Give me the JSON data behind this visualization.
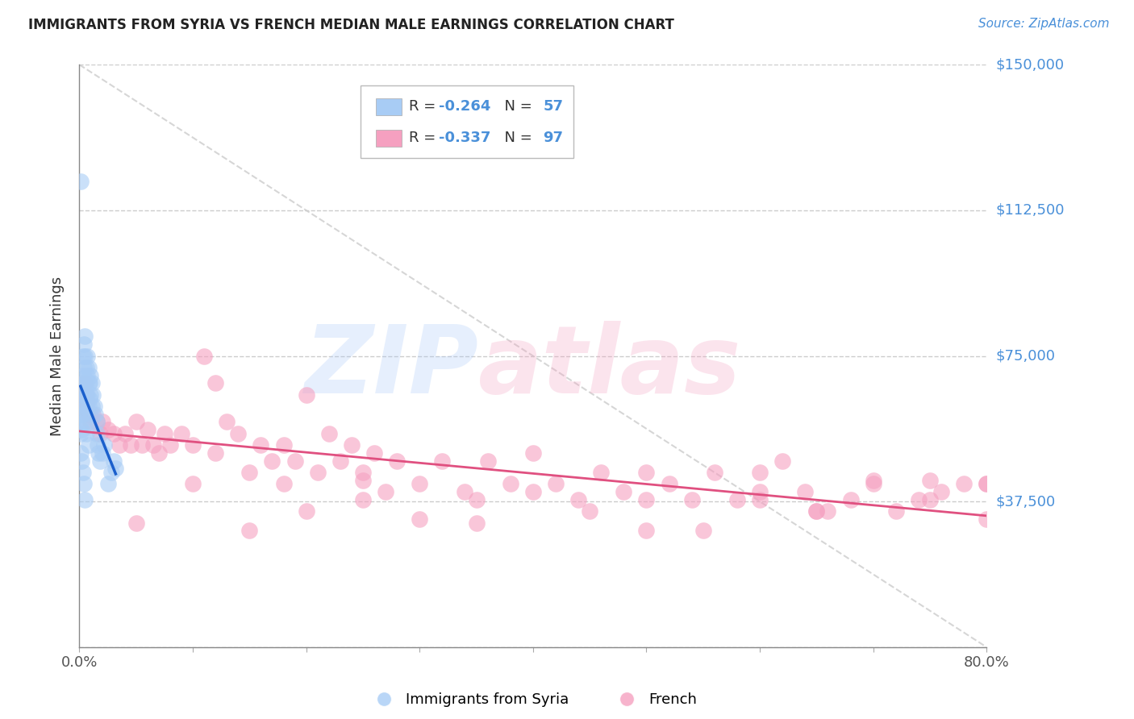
{
  "title": "IMMIGRANTS FROM SYRIA VS FRENCH MEDIAN MALE EARNINGS CORRELATION CHART",
  "source": "Source: ZipAtlas.com",
  "ylabel": "Median Male Earnings",
  "yticks": [
    0,
    37500,
    75000,
    112500,
    150000
  ],
  "ytick_labels": [
    "",
    "$37,500",
    "$75,000",
    "$112,500",
    "$150,000"
  ],
  "xlim": [
    0.0,
    0.8
  ],
  "ylim": [
    0,
    150000
  ],
  "legend_r1": "-0.264",
  "legend_n1": "57",
  "legend_r2": "-0.337",
  "legend_n2": "97",
  "color_syria": "#a8ccf5",
  "color_french": "#f5a0c0",
  "color_trendline_syria": "#1a5fcc",
  "color_trendline_french": "#e05080",
  "color_diagonal": "#cccccc",
  "syria_x": [
    0.001,
    0.001,
    0.002,
    0.002,
    0.003,
    0.003,
    0.003,
    0.004,
    0.004,
    0.004,
    0.005,
    0.005,
    0.005,
    0.005,
    0.006,
    0.006,
    0.006,
    0.006,
    0.007,
    0.007,
    0.007,
    0.008,
    0.008,
    0.008,
    0.009,
    0.009,
    0.01,
    0.01,
    0.011,
    0.011,
    0.012,
    0.013,
    0.014,
    0.015,
    0.015,
    0.016,
    0.017,
    0.018,
    0.02,
    0.022,
    0.025,
    0.028,
    0.03,
    0.032,
    0.001,
    0.002,
    0.003,
    0.004,
    0.005,
    0.006,
    0.007,
    0.008,
    0.001,
    0.002,
    0.003,
    0.004,
    0.005
  ],
  "syria_y": [
    120000,
    55000,
    68000,
    60000,
    70000,
    75000,
    65000,
    78000,
    72000,
    65000,
    80000,
    75000,
    68000,
    62000,
    72000,
    68000,
    65000,
    62000,
    75000,
    70000,
    65000,
    72000,
    68000,
    62000,
    68000,
    64000,
    70000,
    65000,
    68000,
    62000,
    65000,
    62000,
    60000,
    58000,
    55000,
    52000,
    50000,
    48000,
    50000,
    52000,
    42000,
    45000,
    48000,
    46000,
    58000,
    56000,
    62000,
    60000,
    58000,
    55000,
    58000,
    52000,
    50000,
    48000,
    45000,
    42000,
    38000
  ],
  "french_x": [
    0.001,
    0.002,
    0.003,
    0.004,
    0.005,
    0.006,
    0.007,
    0.008,
    0.009,
    0.01,
    0.012,
    0.015,
    0.018,
    0.02,
    0.025,
    0.03,
    0.035,
    0.04,
    0.045,
    0.05,
    0.055,
    0.06,
    0.065,
    0.07,
    0.075,
    0.08,
    0.09,
    0.1,
    0.11,
    0.12,
    0.13,
    0.14,
    0.15,
    0.16,
    0.17,
    0.18,
    0.19,
    0.2,
    0.21,
    0.22,
    0.23,
    0.24,
    0.25,
    0.26,
    0.27,
    0.28,
    0.3,
    0.32,
    0.34,
    0.36,
    0.38,
    0.4,
    0.42,
    0.44,
    0.46,
    0.48,
    0.5,
    0.52,
    0.54,
    0.56,
    0.58,
    0.6,
    0.62,
    0.64,
    0.66,
    0.68,
    0.7,
    0.72,
    0.74,
    0.76,
    0.78,
    0.8,
    0.05,
    0.1,
    0.15,
    0.2,
    0.25,
    0.3,
    0.35,
    0.4,
    0.45,
    0.5,
    0.55,
    0.6,
    0.65,
    0.7,
    0.75,
    0.8,
    0.12,
    0.18,
    0.25,
    0.35,
    0.5,
    0.65,
    0.75,
    0.8,
    0.6
  ],
  "french_y": [
    62000,
    65000,
    63000,
    65000,
    68000,
    65000,
    63000,
    60000,
    60000,
    58000,
    60000,
    58000,
    55000,
    58000,
    56000,
    55000,
    52000,
    55000,
    52000,
    58000,
    52000,
    56000,
    52000,
    50000,
    55000,
    52000,
    55000,
    52000,
    75000,
    68000,
    58000,
    55000,
    45000,
    52000,
    48000,
    52000,
    48000,
    65000,
    45000,
    55000,
    48000,
    52000,
    45000,
    50000,
    40000,
    48000,
    42000,
    48000,
    40000,
    48000,
    42000,
    50000,
    42000,
    38000,
    45000,
    40000,
    45000,
    42000,
    38000,
    45000,
    38000,
    45000,
    48000,
    40000,
    35000,
    38000,
    42000,
    35000,
    38000,
    40000,
    42000,
    42000,
    32000,
    42000,
    30000,
    35000,
    43000,
    33000,
    38000,
    40000,
    35000,
    38000,
    30000,
    40000,
    35000,
    43000,
    38000,
    42000,
    50000,
    42000,
    38000,
    32000,
    30000,
    35000,
    43000,
    33000,
    38000
  ]
}
